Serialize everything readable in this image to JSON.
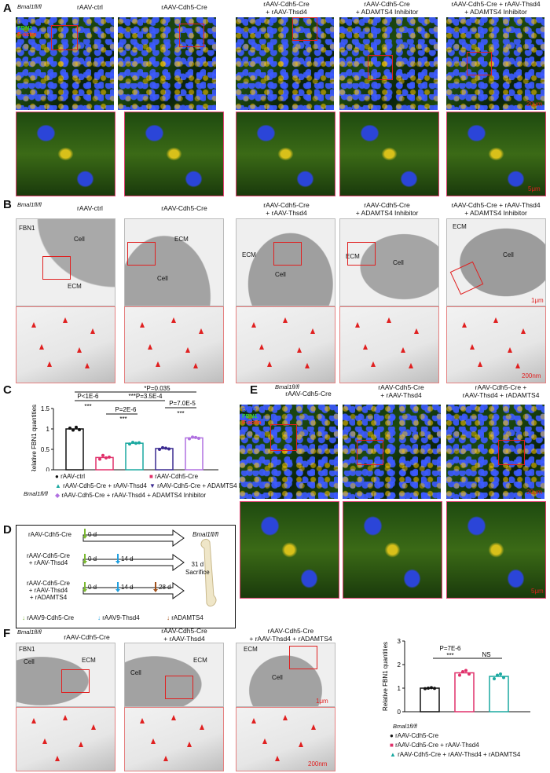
{
  "panelA": {
    "label": "A",
    "genotype": "Bmal1fl/fl",
    "channel_legend": [
      {
        "text": "DAPI",
        "color": "#3050ff"
      },
      {
        "text": "FBN1",
        "color": "#30d030"
      },
      {
        "text": "F-actin",
        "color": "#ff3030"
      }
    ],
    "columns": [
      {
        "line1": "rAAV-ctrl",
        "line2": ""
      },
      {
        "line1": "rAAV-Cdh5-Cre",
        "line2": ""
      },
      {
        "line1": "rAAV-Cdh5-Cre",
        "line2": "+ rAAV-Thsd4"
      },
      {
        "line1": "rAAV-Cdh5-Cre",
        "line2": "+ ADAMTS4 Inhibitor"
      },
      {
        "line1": "rAAV-Cdh5-Cre + rAAV-Thsd4",
        "line2": "+ ADAMTS4 Inhibitor"
      }
    ],
    "scale_top": "20μm",
    "scale_bottom": "5μm"
  },
  "panelB": {
    "label": "B",
    "genotype": "Bmal1fl/fl",
    "stain": "FBN1",
    "columns": [
      {
        "line1": "rAAV-ctrl",
        "line2": ""
      },
      {
        "line1": "rAAV-Cdh5-Cre",
        "line2": ""
      },
      {
        "line1": "rAAV-Cdh5-Cre",
        "line2": "+ rAAV-Thsd4"
      },
      {
        "line1": "rAAV-Cdh5-Cre",
        "line2": "+ ADAMTS4 Inhibitor"
      },
      {
        "line1": "rAAV-Cdh5-Cre + rAAV-Thsd4",
        "line2": "+ ADAMTS4 Inhibitor"
      }
    ],
    "cell": "Cell",
    "ecm": "ECM",
    "scale_top": "1μm",
    "scale_bottom": "200nm"
  },
  "panelC": {
    "label": "C",
    "ylabel": "Relative FBN1 quantities",
    "genotype": "Bmal1fl/fl",
    "stats": [
      {
        "text": "*P=0.035"
      },
      {
        "text": "P<1E-6"
      },
      {
        "text": "***P=3.5E-4"
      },
      {
        "text": "P=2E-6"
      },
      {
        "text": "P=7.0E-5"
      },
      {
        "text": "***"
      },
      {
        "text": "***"
      },
      {
        "text": "***"
      }
    ],
    "legend": [
      {
        "marker": "●",
        "color": "#111111",
        "text": "rAAV-ctrl"
      },
      {
        "marker": "■",
        "color": "#e0306a",
        "text": "rAAV-Cdh5-Cre"
      },
      {
        "marker": "▲",
        "color": "#1aa8a0",
        "text": "rAAV-Cdh5-Cre + rAAV-Thsd4"
      },
      {
        "marker": "▼",
        "color": "#3a2a90",
        "text": "rAAV-Cdh5-Cre + ADAMTS4 Inhibitor"
      },
      {
        "marker": "◆",
        "color": "#b070e0",
        "text": "rAAV-Cdh5-Cre + rAAV-Thsd4 + ADAMTS4 Inhibitor"
      }
    ]
  },
  "panelD": {
    "label": "D",
    "rows": [
      {
        "line1": "rAAV-Cdh5-Cre",
        "line2": "",
        "line3": ""
      },
      {
        "line1": "rAAV-Cdh5-Cre",
        "line2": "+ rAAV-Thsd4",
        "line3": ""
      },
      {
        "line1": "rAAV-Cdh5-Cre",
        "line2": "+ rAAV-Thsd4",
        "line3": "+ rADAMTS4"
      }
    ],
    "day0": "0 d",
    "day14": "14 d",
    "day28": "28 d",
    "genotype": "Bmal1fl/fl",
    "endpoint": "31 d",
    "endpoint2": "Sacrifice",
    "legend": [
      {
        "text": "rAAV9-Cdh5-Cre",
        "color": "#7ab830"
      },
      {
        "text": "rAAV9-Thsd4",
        "color": "#20a0e0"
      },
      {
        "text": "rADAMTS4",
        "color": "#a0501a"
      }
    ]
  },
  "panelE": {
    "label": "E",
    "genotype": "Bmal1fl/fl",
    "columns": [
      {
        "line1": "rAAV-Cdh5-Cre",
        "line2": ""
      },
      {
        "line1": "rAAV-Cdh5-Cre",
        "line2": "+ rAAV-Thsd4"
      },
      {
        "line1": "rAAV-Cdh5-Cre +",
        "line2": "rAAV-Thsd4 + rADAMTS4"
      }
    ],
    "scale_top": "20μm",
    "scale_bottom": "5μm"
  },
  "panelF": {
    "label": "F",
    "genotype": "Bmal1fl/fl",
    "stain": "FBN1",
    "columns": [
      {
        "line1": "rAAV-Cdh5-Cre",
        "line2": ""
      },
      {
        "line1": "rAAV-Cdh5-Cre",
        "line2": "+ rAAV-Thsd4"
      },
      {
        "line1": "rAAV-Cdh5-Cre",
        "line2": "+ rAAV-Thsd4 + rADAMTS4"
      }
    ],
    "scale_top": "1μm",
    "scale_bottom": "200nm",
    "stat_p": "P=7E-6",
    "stat_star": "***",
    "stat_ns": "NS",
    "legend": [
      {
        "marker": "●",
        "color": "#111111",
        "text": "rAAV-Cdh5-Cre"
      },
      {
        "marker": "■",
        "color": "#e0306a",
        "text": "rAAV-Cdh5-Cre + rAAV-Thsd4"
      },
      {
        "marker": "▲",
        "color": "#1aa8a0",
        "text": "rAAV-Cdh5-Cre + rAAV-Thsd4 + rADAMTS4"
      }
    ]
  },
  "chart_data": [
    {
      "type": "bar",
      "panel": "C",
      "ylabel": "Relative FBN1 quantities",
      "ylim": [
        0,
        1.5
      ],
      "yticks": [
        0,
        0.5,
        1.0,
        1.5
      ],
      "categories": [
        "rAAV-ctrl",
        "rAAV-Cdh5-Cre",
        "rAAV-Cdh5-Cre + rAAV-Thsd4",
        "rAAV-Cdh5-Cre + ADAMTS4 Inhibitor",
        "rAAV-Cdh5-Cre + rAAV-Thsd4 + ADAMTS4 Inhibitor"
      ],
      "values": [
        1.0,
        0.3,
        0.65,
        0.52,
        0.78
      ],
      "colors": [
        "#111111",
        "#e0306a",
        "#1aa8a0",
        "#3a2a90",
        "#b070e0"
      ],
      "points": [
        [
          1.02,
          0.97,
          1.04,
          0.98
        ],
        [
          0.26,
          0.35,
          0.29,
          0.31
        ],
        [
          0.63,
          0.67,
          0.65,
          0.66
        ],
        [
          0.5,
          0.54,
          0.53,
          0.51
        ],
        [
          0.76,
          0.8,
          0.79,
          0.77
        ]
      ]
    },
    {
      "type": "bar",
      "panel": "F",
      "ylabel": "Relative FBN1 quantities",
      "ylim": [
        0,
        3
      ],
      "yticks": [
        0,
        1,
        2,
        3
      ],
      "categories": [
        "rAAV-Cdh5-Cre",
        "rAAV-Cdh5-Cre + rAAV-Thsd4",
        "rAAV-Cdh5-Cre + rAAV-Thsd4 + rADAMTS4"
      ],
      "values": [
        1.0,
        1.65,
        1.5
      ],
      "colors": [
        "#111111",
        "#e0306a",
        "#1aa8a0"
      ],
      "points": [
        [
          0.98,
          1.0,
          1.02,
          0.99
        ],
        [
          1.55,
          1.7,
          1.75,
          1.6
        ],
        [
          1.4,
          1.55,
          1.6,
          1.45
        ]
      ]
    }
  ]
}
